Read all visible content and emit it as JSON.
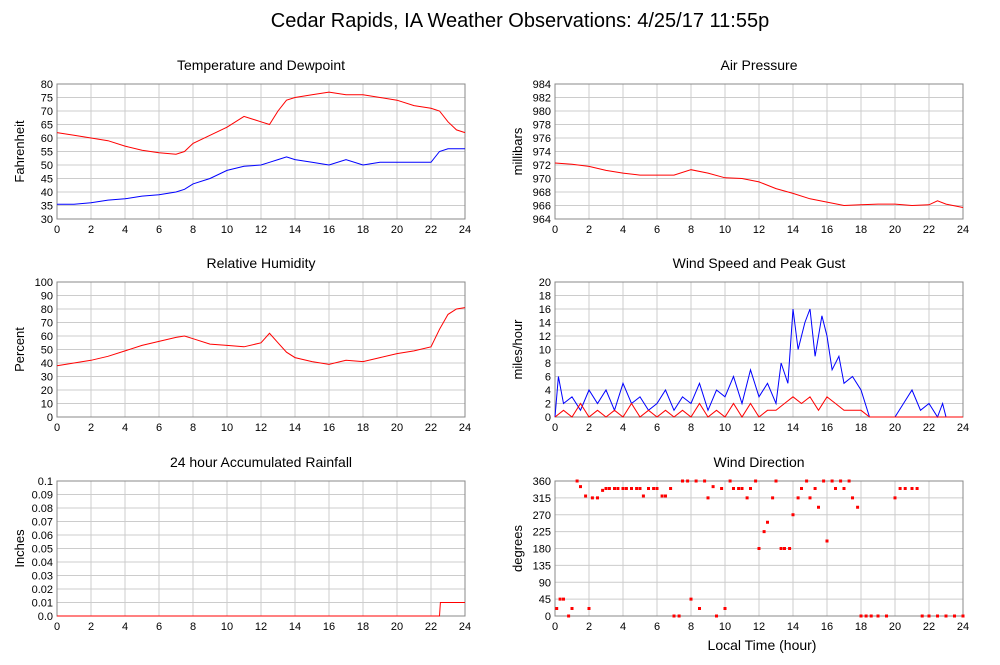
{
  "page_title": "Cedar Rapids, IA Weather Observations: 4/25/17 11:55p",
  "x_axis_label": "Local Time (hour)",
  "colors": {
    "red": "#ff0000",
    "blue": "#0000ff",
    "grid": "#cccccc",
    "frame": "#888888"
  },
  "chart_data": [
    {
      "id": "temp",
      "type": "line",
      "title": "Temperature and Dewpoint",
      "ylabel": "Fahrenheit",
      "xlim": [
        0,
        24
      ],
      "ylim": [
        30,
        80
      ],
      "yticks": [
        30,
        35,
        40,
        45,
        50,
        55,
        60,
        65,
        70,
        75,
        80
      ],
      "xticks": [
        0,
        2,
        4,
        6,
        8,
        10,
        12,
        14,
        16,
        18,
        20,
        22,
        24
      ],
      "series": [
        {
          "color": "#ff0000",
          "x": [
            0,
            1,
            2,
            3,
            4,
            5,
            6,
            7,
            7.5,
            8,
            9,
            10,
            11,
            11.5,
            12,
            12.5,
            13,
            13.5,
            14,
            15,
            16,
            17,
            18,
            19,
            20,
            21,
            22,
            22.5,
            23,
            23.5,
            24
          ],
          "y": [
            62,
            61,
            60,
            59,
            57,
            55.5,
            54.5,
            54,
            55,
            58,
            61,
            64,
            68,
            67,
            66,
            65,
            70,
            74,
            75,
            76,
            77,
            76,
            76,
            75,
            74,
            72,
            71,
            70,
            66,
            63,
            62
          ]
        },
        {
          "color": "#0000ff",
          "x": [
            0,
            1,
            2,
            3,
            4,
            5,
            6,
            7,
            7.5,
            8,
            9,
            10,
            11,
            12,
            12.5,
            13,
            13.5,
            14,
            15,
            16,
            17,
            18,
            19,
            20,
            21,
            22,
            22.5,
            23,
            24
          ],
          "y": [
            35.5,
            35.5,
            36,
            37,
            37.5,
            38.5,
            39,
            40,
            41,
            43,
            45,
            48,
            49.5,
            50,
            51,
            52,
            53,
            52,
            51,
            50,
            52,
            50,
            51,
            51,
            51,
            51,
            55,
            56,
            56
          ]
        }
      ]
    },
    {
      "id": "pressure",
      "type": "line",
      "title": "Air Pressure",
      "ylabel": "millibars",
      "xlim": [
        0,
        24
      ],
      "ylim": [
        964,
        984
      ],
      "yticks": [
        964,
        966,
        968,
        970,
        972,
        974,
        976,
        978,
        980,
        982,
        984
      ],
      "xticks": [
        0,
        2,
        4,
        6,
        8,
        10,
        12,
        14,
        16,
        18,
        20,
        22,
        24
      ],
      "series": [
        {
          "color": "#ff0000",
          "x": [
            0,
            1,
            2,
            3,
            4,
            5,
            6,
            7,
            8,
            9,
            10,
            11,
            12,
            13,
            14,
            15,
            16,
            17,
            18,
            19,
            20,
            21,
            22,
            22.5,
            23,
            24
          ],
          "y": [
            972.3,
            972.1,
            971.8,
            971.2,
            970.8,
            970.5,
            970.5,
            970.5,
            971.3,
            970.8,
            970.1,
            970.0,
            969.5,
            968.5,
            967.8,
            967.0,
            966.5,
            966.0,
            966.1,
            966.2,
            966.2,
            966.0,
            966.1,
            966.7,
            966.2,
            965.7
          ]
        }
      ]
    },
    {
      "id": "humidity",
      "type": "line",
      "title": "Relative Humidity",
      "ylabel": "Percent",
      "xlim": [
        0,
        24
      ],
      "ylim": [
        0,
        100
      ],
      "yticks": [
        0,
        10,
        20,
        30,
        40,
        50,
        60,
        70,
        80,
        90,
        100
      ],
      "xticks": [
        0,
        2,
        4,
        6,
        8,
        10,
        12,
        14,
        16,
        18,
        20,
        22,
        24
      ],
      "series": [
        {
          "color": "#ff0000",
          "x": [
            0,
            1,
            2,
            3,
            4,
            5,
            6,
            7,
            7.5,
            8,
            9,
            10,
            11,
            12,
            12.5,
            13,
            13.5,
            14,
            15,
            16,
            17,
            18,
            19,
            20,
            21,
            22,
            22.5,
            23,
            23.5,
            24
          ],
          "y": [
            38,
            40,
            42,
            45,
            49,
            53,
            56,
            59,
            60,
            58,
            54,
            53,
            52,
            55,
            62,
            55,
            48,
            44,
            41,
            39,
            42,
            41,
            44,
            47,
            49,
            52,
            65,
            76,
            80,
            81
          ]
        }
      ]
    },
    {
      "id": "wind",
      "type": "line",
      "title": "Wind Speed and Peak Gust",
      "ylabel": "miles/hour",
      "xlim": [
        0,
        24
      ],
      "ylim": [
        0,
        20
      ],
      "yticks": [
        0,
        2,
        4,
        6,
        8,
        10,
        12,
        14,
        16,
        18,
        20
      ],
      "xticks": [
        0,
        2,
        4,
        6,
        8,
        10,
        12,
        14,
        16,
        18,
        20,
        22,
        24
      ],
      "series": [
        {
          "color": "#0000ff",
          "x": [
            0,
            0.2,
            0.5,
            1,
            1.5,
            2,
            2.5,
            3,
            3.5,
            4,
            4.5,
            5,
            5.5,
            6,
            6.5,
            7,
            7.5,
            8,
            8.5,
            9,
            9.5,
            10,
            10.5,
            11,
            11.5,
            12,
            12.5,
            13,
            13.3,
            13.7,
            14,
            14.3,
            14.7,
            15,
            15.3,
            15.7,
            16,
            16.3,
            16.7,
            17,
            17.5,
            18,
            18.5,
            19,
            20,
            20.5,
            21,
            21.5,
            22,
            22.5,
            22.8,
            23,
            24
          ],
          "y": [
            0,
            6,
            2,
            3,
            1,
            4,
            2,
            4,
            1,
            5,
            2,
            3,
            1,
            2,
            4,
            1,
            3,
            2,
            5,
            1,
            4,
            3,
            6,
            2,
            7,
            3,
            5,
            2,
            8,
            5,
            16,
            10,
            14,
            16,
            9,
            15,
            12,
            7,
            9,
            5,
            6,
            4,
            0,
            0,
            0,
            2,
            4,
            1,
            2,
            0,
            2,
            0,
            0
          ]
        },
        {
          "color": "#ff0000",
          "x": [
            0,
            0.5,
            1,
            1.5,
            2,
            2.5,
            3,
            3.5,
            4,
            4.5,
            5,
            5.5,
            6,
            6.5,
            7,
            7.5,
            8,
            8.5,
            9,
            9.5,
            10,
            10.5,
            11,
            11.5,
            12,
            12.5,
            13,
            13.5,
            14,
            14.5,
            15,
            15.5,
            16,
            16.5,
            17,
            17.5,
            18,
            18.5,
            24
          ],
          "y": [
            0,
            1,
            0,
            2,
            0,
            1,
            0,
            1,
            0,
            2,
            0,
            1,
            0,
            1,
            0,
            1,
            0,
            2,
            0,
            1,
            0,
            2,
            0,
            2,
            0,
            1,
            1,
            2,
            3,
            2,
            3,
            1,
            3,
            2,
            1,
            1,
            1,
            0,
            0
          ]
        }
      ]
    },
    {
      "id": "rain",
      "type": "line",
      "title": "24 hour Accumulated Rainfall",
      "ylabel": "Inches",
      "xlim": [
        0,
        24
      ],
      "ylim": [
        0,
        0.1
      ],
      "yticks": [
        0.0,
        0.01,
        0.02,
        0.03,
        0.04,
        0.05,
        0.06,
        0.07,
        0.08,
        0.09,
        0.1
      ],
      "ytick_labels": [
        "0.0",
        "0.01",
        "0.02",
        "0.03",
        "0.04",
        "0.05",
        "0.06",
        "0.07",
        "0.08",
        "0.09",
        "0.1"
      ],
      "xticks": [
        0,
        2,
        4,
        6,
        8,
        10,
        12,
        14,
        16,
        18,
        20,
        22,
        24
      ],
      "series": [
        {
          "color": "#ff0000",
          "x": [
            0,
            22.5,
            22.55,
            24
          ],
          "y": [
            0,
            0,
            0.01,
            0.01
          ]
        }
      ]
    },
    {
      "id": "direction",
      "type": "scatter",
      "title": "Wind Direction",
      "ylabel": "degrees",
      "xlim": [
        0,
        24
      ],
      "ylim": [
        0,
        360
      ],
      "yticks": [
        0,
        45,
        90,
        135,
        180,
        225,
        270,
        315,
        360
      ],
      "xticks": [
        0,
        2,
        4,
        6,
        8,
        10,
        12,
        14,
        16,
        18,
        20,
        22,
        24
      ],
      "series": [
        {
          "color": "#ff0000",
          "x": [
            0.1,
            0.3,
            0.5,
            0.8,
            1.0,
            1.3,
            1.5,
            1.8,
            2.0,
            2.2,
            2.5,
            2.8,
            3.0,
            3.2,
            3.5,
            3.7,
            4.0,
            4.2,
            4.5,
            4.8,
            5.0,
            5.2,
            5.5,
            5.8,
            6.0,
            6.3,
            6.5,
            6.8,
            7.0,
            7.3,
            7.5,
            7.8,
            8.0,
            8.3,
            8.5,
            8.8,
            9.0,
            9.3,
            9.5,
            9.8,
            10.0,
            10.3,
            10.5,
            10.8,
            11.0,
            11.3,
            11.5,
            11.8,
            12.0,
            12.3,
            12.5,
            12.8,
            13.0,
            13.3,
            13.5,
            13.8,
            14.0,
            14.3,
            14.5,
            14.8,
            15.0,
            15.3,
            15.5,
            15.8,
            16.0,
            16.3,
            16.5,
            16.8,
            17.0,
            17.3,
            17.5,
            17.8,
            18.0,
            18.3,
            18.6,
            19.0,
            19.5,
            20.0,
            20.3,
            20.6,
            21.0,
            21.3,
            21.6,
            22.0,
            22.5,
            23.0,
            23.5,
            24.0
          ],
          "y": [
            20,
            45,
            45,
            0,
            20,
            360,
            345,
            320,
            20,
            315,
            315,
            335,
            340,
            340,
            340,
            340,
            340,
            340,
            340,
            340,
            340,
            320,
            340,
            340,
            340,
            320,
            320,
            340,
            0,
            0,
            360,
            360,
            45,
            360,
            20,
            360,
            315,
            345,
            0,
            340,
            20,
            360,
            340,
            340,
            340,
            315,
            340,
            360,
            180,
            225,
            250,
            315,
            360,
            180,
            180,
            180,
            270,
            315,
            340,
            360,
            315,
            340,
            290,
            360,
            200,
            360,
            340,
            360,
            340,
            360,
            315,
            290,
            0,
            0,
            0,
            0,
            0,
            315,
            340,
            340,
            340,
            340,
            0,
            0,
            0,
            0,
            0,
            0
          ]
        }
      ]
    }
  ]
}
